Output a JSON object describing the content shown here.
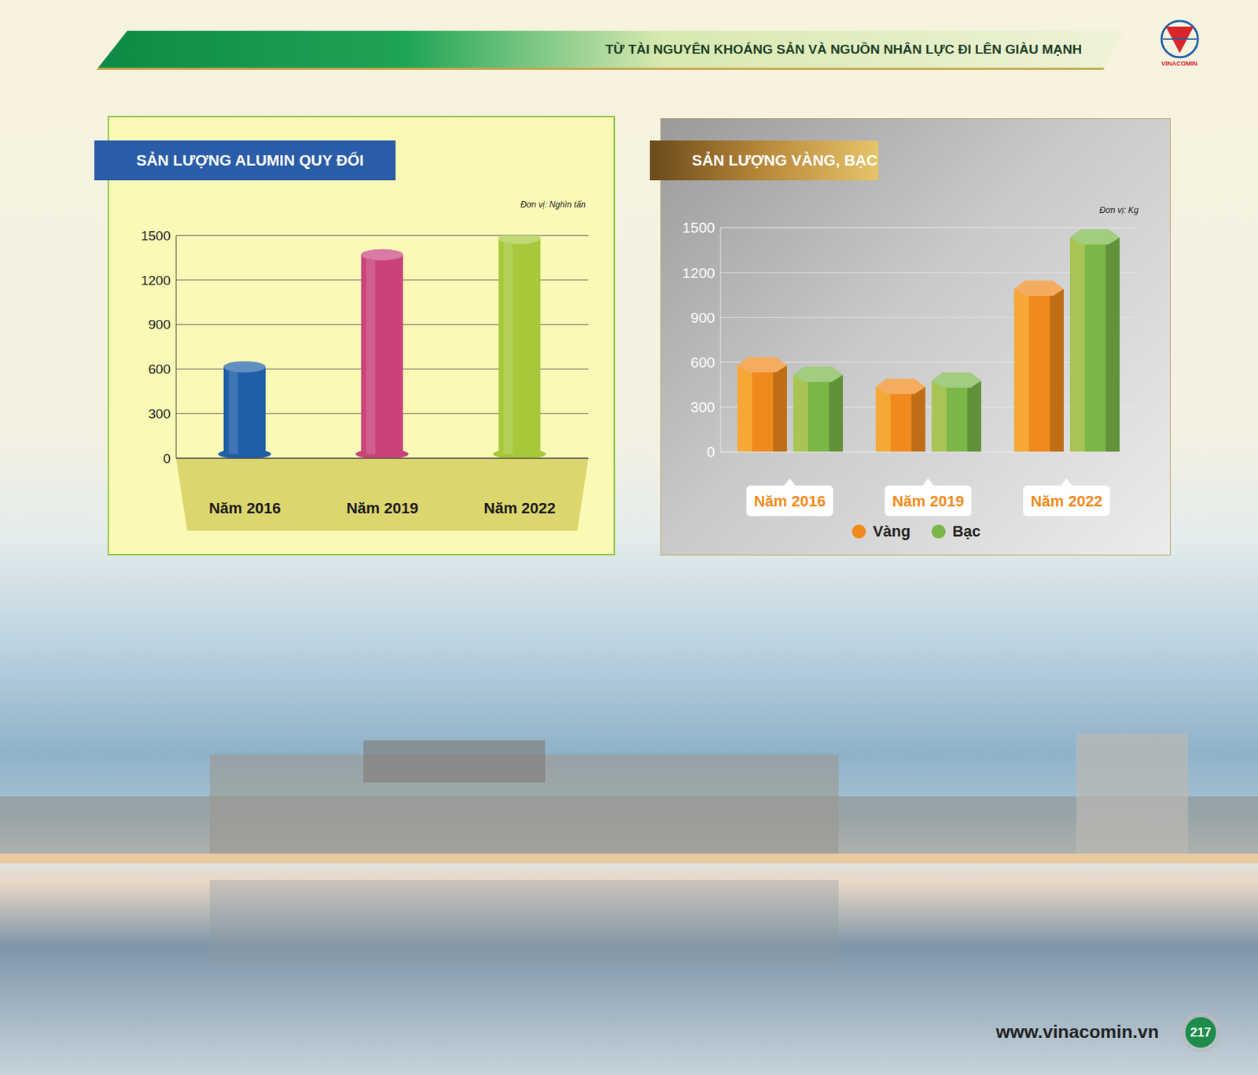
{
  "header": {
    "title": "TỪ TÀI NGUYÊN KHOÁNG SẢN VÀ NGUỒN NHÂN LỰC ĐI LÊN GIÀU MẠNH",
    "logo": "VINACOMIN"
  },
  "chart_data": [
    {
      "type": "bar",
      "title": "SẢN LƯỢNG ALUMIN QUY ĐỔI",
      "unit": "Đơn vị: Nghìn tấn",
      "categories": [
        "Năm 2016",
        "Năm 2019",
        "Năm 2022"
      ],
      "values": [
        615,
        1370,
        1480
      ],
      "colors": [
        "#1f5fa8",
        "#c9437a",
        "#a6c83a"
      ],
      "ylim": [
        0,
        1500
      ],
      "yticks": [
        0,
        300,
        600,
        900,
        1200,
        1500
      ],
      "grid": true
    },
    {
      "type": "bar",
      "title": "SẢN LƯỢNG VÀNG, BẠC",
      "unit": "Đơn vị: Kg",
      "categories": [
        "Năm 2016",
        "Năm 2019",
        "Năm 2022"
      ],
      "series": [
        {
          "name": "Vàng",
          "color": "#f08a1c",
          "values": [
            580,
            435,
            1090
          ]
        },
        {
          "name": "Bạc",
          "color": "#7ab648",
          "values": [
            515,
            475,
            1435
          ]
        }
      ],
      "ylim": [
        0,
        1500
      ],
      "yticks": [
        0,
        300,
        600,
        900,
        1200,
        1500
      ],
      "grid": true
    }
  ],
  "footer": {
    "website": "www.vinacomin.vn",
    "page": 217
  }
}
